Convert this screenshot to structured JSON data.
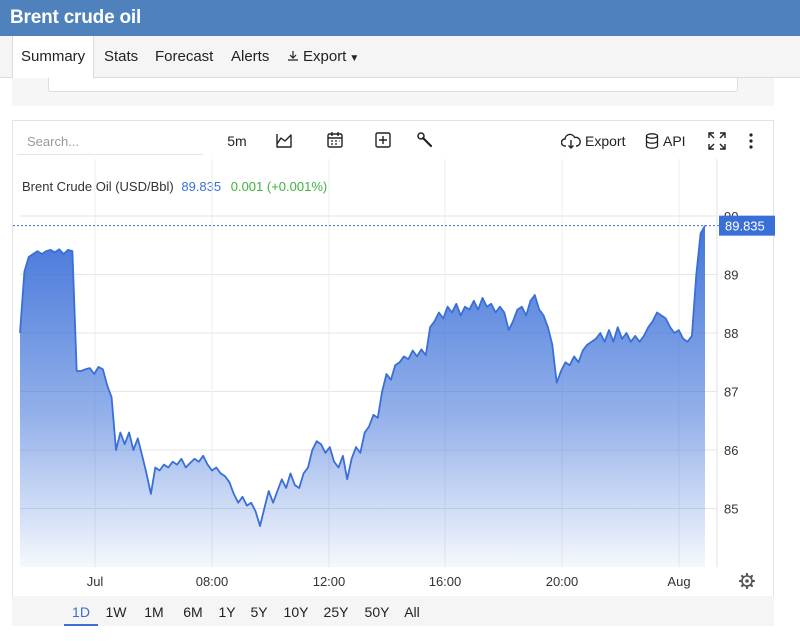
{
  "page": {
    "title": "Brent crude oil"
  },
  "tabs": [
    {
      "label": "Summary",
      "active": true
    },
    {
      "label": "Stats"
    },
    {
      "label": "Forecast"
    },
    {
      "label": "Alerts"
    },
    {
      "label": "Export"
    }
  ],
  "toolbar": {
    "search_placeholder": "Search...",
    "interval": "5m",
    "export_label": "Export",
    "api_label": "API",
    "icons": [
      "chart-type-icon",
      "calendar-icon",
      "add-indicator-icon",
      "wrench-icon",
      "cloud-download-icon",
      "database-icon",
      "fullscreen-icon",
      "more-vertical-icon"
    ]
  },
  "quote": {
    "symbol": "Brent Crude Oil (USD/Bbl)",
    "price": "89.835",
    "change": "0.001 (+0.001%)"
  },
  "chart_data": {
    "type": "area",
    "series": [
      {
        "name": "Brent Crude Oil (USD/Bbl)",
        "color": "#3a6fd8",
        "values": [
          88.0,
          89.05,
          89.3,
          89.35,
          89.4,
          89.35,
          89.4,
          89.42,
          89.38,
          89.43,
          89.35,
          89.42,
          89.4,
          87.35,
          87.35,
          87.38,
          87.4,
          87.3,
          87.42,
          87.38,
          87.1,
          86.9,
          86.0,
          86.3,
          86.1,
          86.3,
          86.0,
          86.2,
          85.9,
          85.6,
          85.25,
          85.7,
          85.65,
          85.75,
          85.7,
          85.8,
          85.75,
          85.85,
          85.7,
          85.78,
          85.85,
          85.8,
          85.9,
          85.75,
          85.65,
          85.7,
          85.6,
          85.55,
          85.45,
          85.25,
          85.1,
          85.2,
          85.05,
          85.1,
          84.95,
          84.7,
          85.0,
          85.3,
          85.1,
          85.3,
          85.5,
          85.35,
          85.6,
          85.4,
          85.35,
          85.6,
          85.7,
          86.0,
          86.15,
          86.1,
          85.95,
          86.05,
          85.8,
          85.7,
          85.9,
          85.5,
          85.85,
          86.05,
          85.95,
          86.3,
          86.4,
          86.6,
          86.55,
          87.0,
          87.3,
          87.2,
          87.45,
          87.5,
          87.6,
          87.55,
          87.7,
          87.6,
          87.72,
          87.62,
          88.1,
          88.2,
          88.35,
          88.25,
          88.45,
          88.35,
          88.5,
          88.3,
          88.45,
          88.4,
          88.55,
          88.4,
          88.6,
          88.45,
          88.5,
          88.35,
          88.45,
          88.35,
          88.05,
          88.2,
          88.4,
          88.45,
          88.3,
          88.55,
          88.65,
          88.4,
          88.3,
          88.1,
          87.8,
          87.15,
          87.35,
          87.5,
          87.45,
          87.6,
          87.5,
          87.7,
          87.8,
          87.85,
          87.9,
          88.0,
          87.85,
          88.05,
          87.85,
          88.1,
          87.9,
          88.0,
          87.85,
          87.95,
          87.85,
          87.95,
          88.1,
          88.2,
          88.35,
          88.3,
          88.25,
          88.1,
          88.0,
          88.05,
          87.9,
          87.85,
          87.95,
          89.0,
          89.7,
          89.835
        ]
      }
    ],
    "last_value": 89.835,
    "ylim": [
      84.0,
      90.0
    ],
    "y_ticks": [
      85,
      86,
      87,
      88,
      89,
      90
    ],
    "x_tick_labels": [
      "Jul",
      "08:00",
      "12:00",
      "16:00",
      "20:00",
      "Aug"
    ],
    "grid": true,
    "legend": "none"
  },
  "ranges": {
    "items": [
      "1D",
      "1W",
      "1M",
      "6M",
      "1Y",
      "5Y",
      "10Y",
      "25Y",
      "50Y",
      "All"
    ],
    "active": "1D"
  },
  "colors": {
    "header": "#4f81bd",
    "accent": "#3a6fd8",
    "positive": "#3fb13f"
  }
}
